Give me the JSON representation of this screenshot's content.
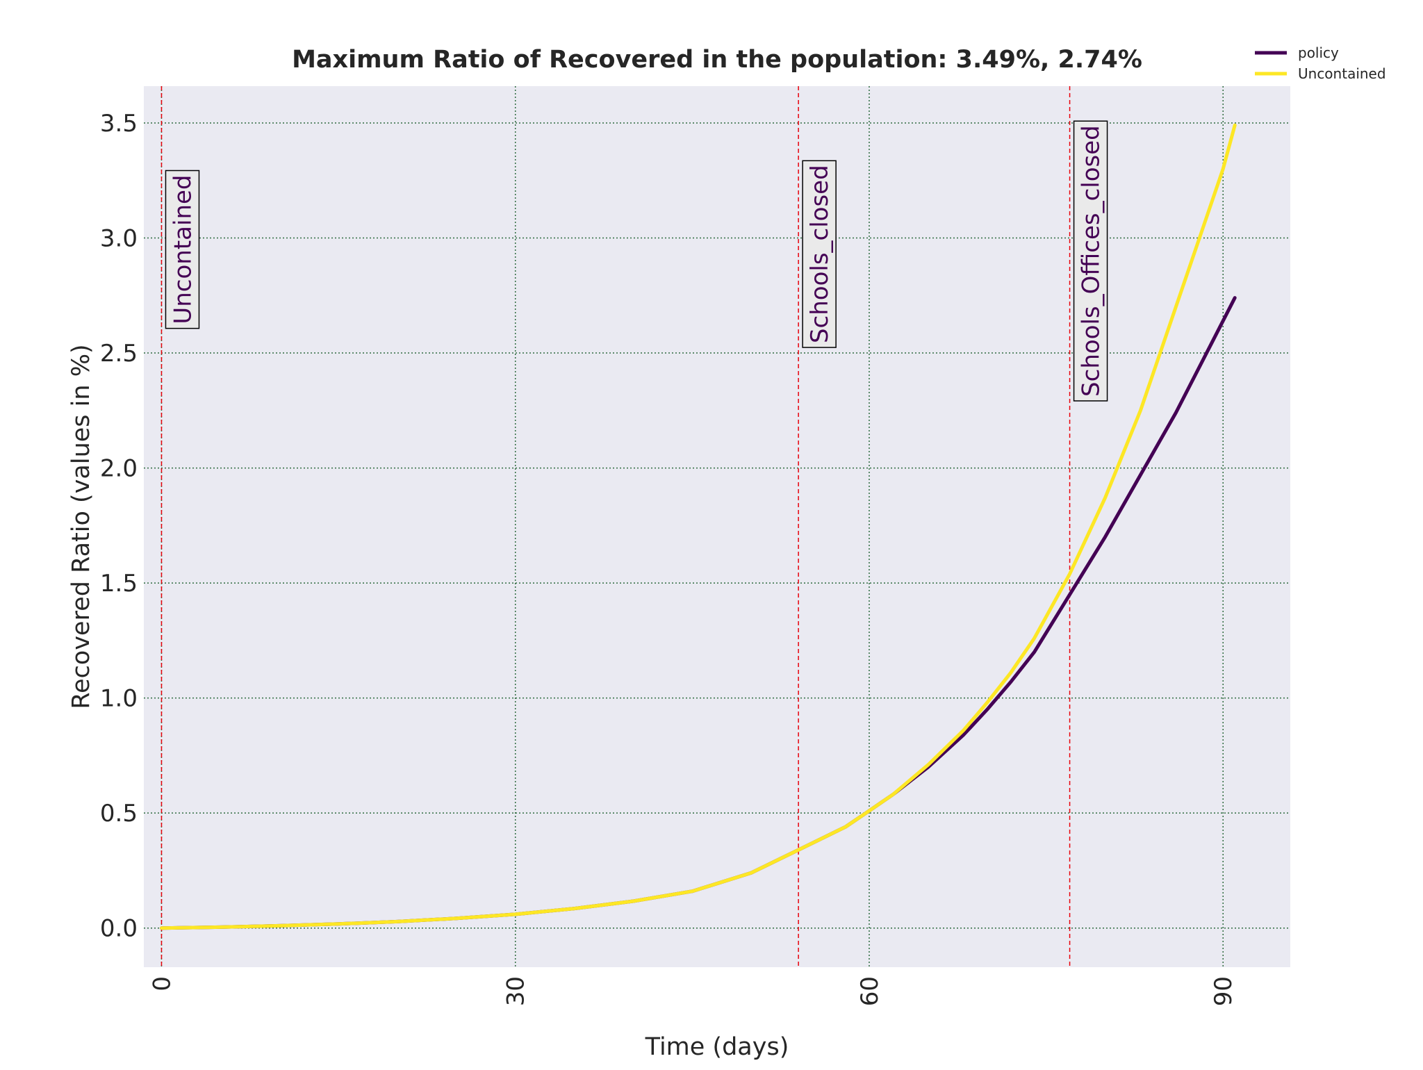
{
  "chart_data": {
    "type": "line",
    "title": "Maximum Ratio of Recovered in the population: 3.49%, 2.74%",
    "xlabel": "Time (days)",
    "ylabel": "Recovered Ratio (values in %)",
    "xlim": [
      -1.5,
      95.7
    ],
    "ylim": [
      -0.17,
      3.66
    ],
    "xticks": [
      0,
      30,
      60,
      90
    ],
    "yticks": [
      0.0,
      0.5,
      1.0,
      1.5,
      2.0,
      2.5,
      3.0,
      3.5
    ],
    "xtick_labels": [
      "0",
      "30",
      "60",
      "90"
    ],
    "ytick_labels": [
      "0.0",
      "0.5",
      "1.0",
      "1.5",
      "2.0",
      "2.5",
      "3.0",
      "3.5"
    ],
    "grid": true,
    "legend_position": "top-right",
    "background_color": "#eaeaf2",
    "grid_color": "#2e6b3f",
    "marker_line_color": "#e8000b",
    "label_text_color": "#440154",
    "series": [
      {
        "name": "policy",
        "color": "#440154",
        "x": [
          0,
          5,
          10,
          15,
          20,
          25,
          30,
          35,
          40,
          45,
          50,
          54,
          58,
          60,
          62,
          65,
          68,
          70,
          72,
          74,
          77,
          80,
          83,
          86,
          89,
          91
        ],
        "y": [
          0.0,
          0.004,
          0.01,
          0.018,
          0.028,
          0.042,
          0.06,
          0.085,
          0.117,
          0.16,
          0.24,
          0.34,
          0.44,
          0.51,
          0.58,
          0.7,
          0.84,
          0.95,
          1.07,
          1.2,
          1.45,
          1.7,
          1.97,
          2.24,
          2.54,
          2.74
        ]
      },
      {
        "name": "Uncontained",
        "color": "#fde725",
        "x": [
          0,
          5,
          10,
          15,
          20,
          25,
          30,
          35,
          40,
          45,
          50,
          54,
          58,
          60,
          62,
          65,
          68,
          70,
          72,
          74,
          77,
          80,
          83,
          86,
          88,
          90,
          91
        ],
        "y": [
          0.0,
          0.004,
          0.01,
          0.018,
          0.028,
          0.042,
          0.06,
          0.085,
          0.117,
          0.16,
          0.24,
          0.34,
          0.44,
          0.51,
          0.58,
          0.71,
          0.86,
          0.98,
          1.11,
          1.26,
          1.54,
          1.87,
          2.25,
          2.7,
          3.0,
          3.3,
          3.49
        ]
      }
    ],
    "vertical_markers": [
      {
        "x": 0,
        "label": "Uncontained",
        "label_center_y": 2.95
      },
      {
        "x": 54,
        "label": "Schools_closed",
        "label_center_y": 2.93
      },
      {
        "x": 77,
        "label": "Schools_Offices_closed",
        "label_center_y": 2.9
      }
    ]
  }
}
